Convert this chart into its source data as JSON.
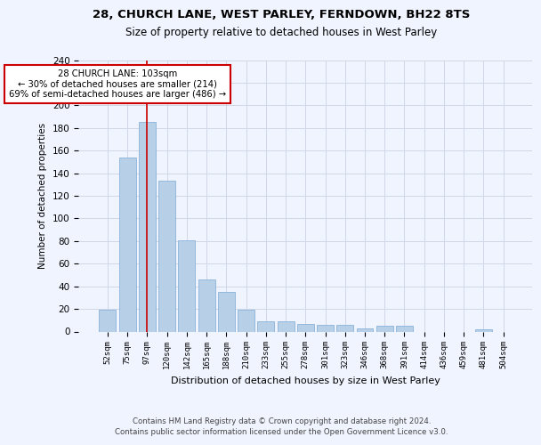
{
  "title1": "28, CHURCH LANE, WEST PARLEY, FERNDOWN, BH22 8TS",
  "title2": "Size of property relative to detached houses in West Parley",
  "xlabel": "Distribution of detached houses by size in West Parley",
  "ylabel": "Number of detached properties",
  "bar_color": "#b8cfe8",
  "bar_edge_color": "#7aaad4",
  "categories": [
    "52sqm",
    "75sqm",
    "97sqm",
    "120sqm",
    "142sqm",
    "165sqm",
    "188sqm",
    "210sqm",
    "233sqm",
    "255sqm",
    "278sqm",
    "301sqm",
    "323sqm",
    "346sqm",
    "368sqm",
    "391sqm",
    "414sqm",
    "436sqm",
    "459sqm",
    "481sqm",
    "504sqm"
  ],
  "values": [
    19,
    154,
    185,
    133,
    81,
    46,
    35,
    19,
    9,
    9,
    7,
    6,
    6,
    3,
    5,
    5,
    0,
    0,
    0,
    2,
    0
  ],
  "vline_x": 2,
  "vline_color": "#cc0000",
  "annotation_text": "28 CHURCH LANE: 103sqm\n← 30% of detached houses are smaller (214)\n69% of semi-detached houses are larger (486) →",
  "annotation_box_color": "#ffffff",
  "annotation_box_edge_color": "#cc0000",
  "footer": "Contains HM Land Registry data © Crown copyright and database right 2024.\nContains public sector information licensed under the Open Government Licence v3.0.",
  "ylim": [
    0,
    240
  ],
  "yticks": [
    0,
    20,
    40,
    60,
    80,
    100,
    120,
    140,
    160,
    180,
    200,
    220,
    240
  ],
  "grid_color": "#d0d8e8",
  "background_color": "#f0f4ff"
}
